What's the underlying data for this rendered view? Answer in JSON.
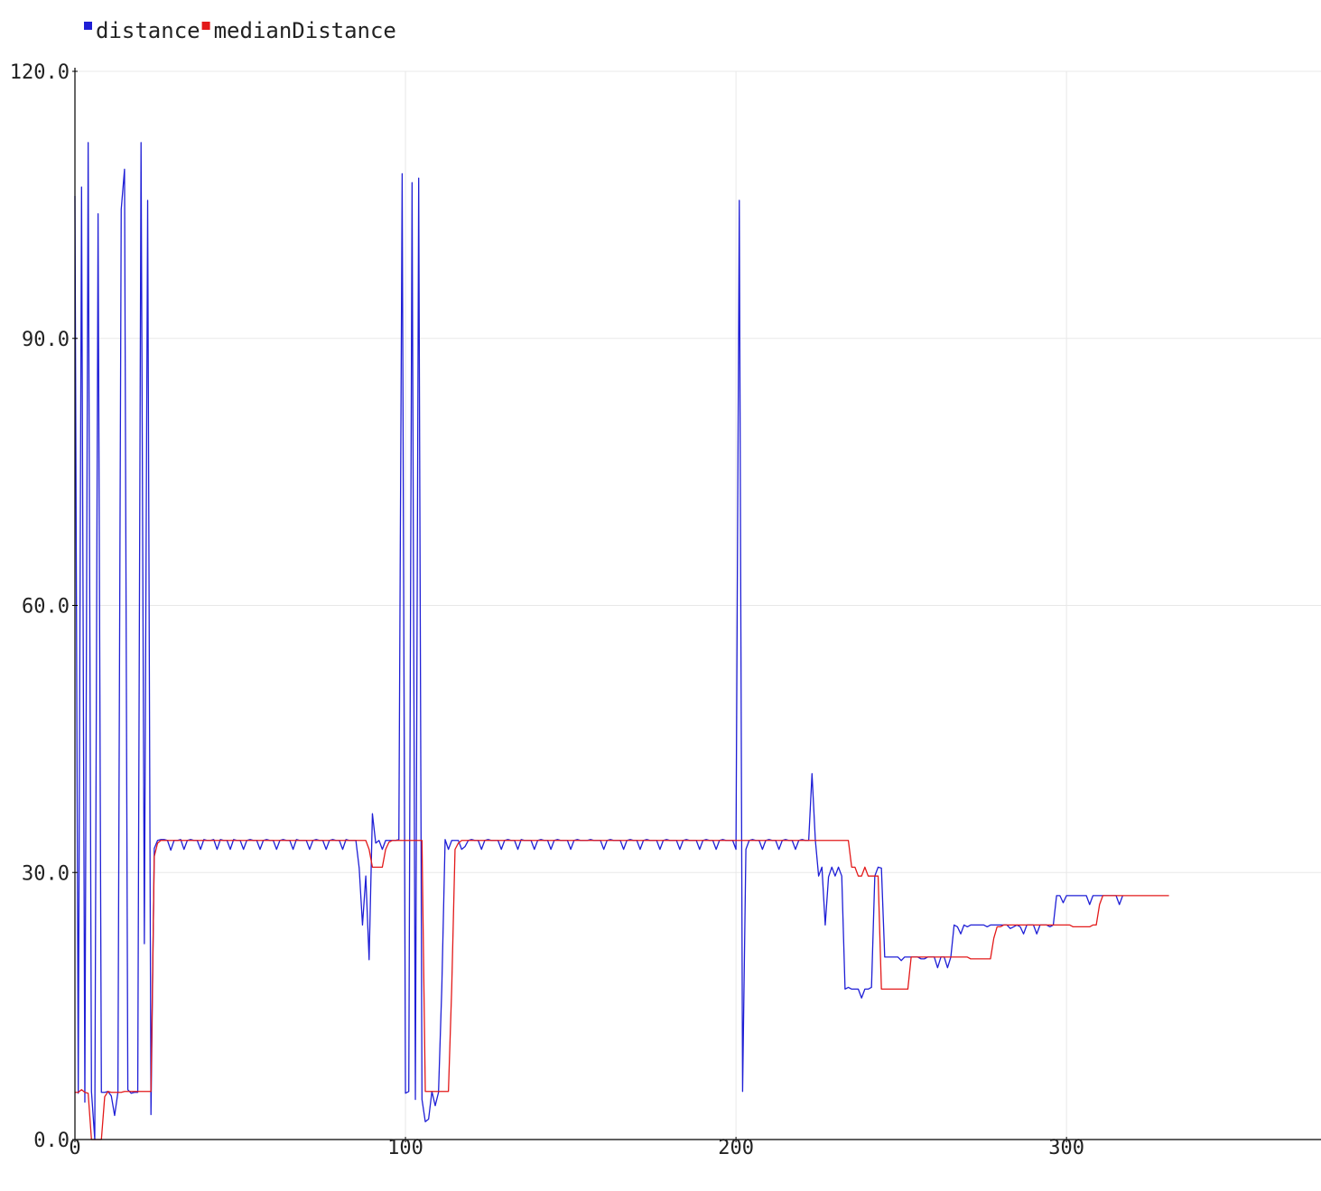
{
  "colors": {
    "distance": "#1f1fd6",
    "medianDistance": "#e31a1a",
    "grid": "#e8e8e8",
    "axis": "#000000",
    "text": "#222222"
  },
  "chart_data": {
    "type": "line",
    "xlim": [
      0,
      377
    ],
    "ylim": [
      0,
      120
    ],
    "grid": true,
    "legend_position": "top-left",
    "x_ticks": [
      0,
      100,
      200,
      300
    ],
    "x_tick_labels": [
      "0",
      "100",
      "200",
      "300"
    ],
    "y_ticks": [
      0,
      30,
      60,
      90,
      120
    ],
    "y_tick_labels": [
      "0.0",
      "30.0",
      "60.0",
      "90.0",
      "120.0"
    ],
    "series": [
      {
        "name": "distance",
        "color": "#1f1fd6",
        "values": [
          106,
          5.2,
          107,
          4.2,
          112,
          5.4,
          0,
          104,
          5.3,
          5.3,
          5.4,
          4.9,
          2.7,
          5.3,
          104.5,
          109,
          5.6,
          5.2,
          5.3,
          5.3,
          112,
          22,
          105.5,
          2.8,
          32.7,
          33.6,
          33.7,
          33.7,
          33.6,
          32.5,
          33.6,
          33.6,
          33.7,
          32.6,
          33.6,
          33.7,
          33.6,
          33.6,
          32.6,
          33.7,
          33.6,
          33.6,
          33.7,
          32.6,
          33.7,
          33.6,
          33.6,
          32.6,
          33.7,
          33.6,
          33.6,
          32.6,
          33.6,
          33.7,
          33.6,
          33.6,
          32.6,
          33.6,
          33.7,
          33.6,
          33.6,
          32.6,
          33.6,
          33.7,
          33.6,
          33.6,
          32.6,
          33.7,
          33.6,
          33.6,
          33.6,
          32.6,
          33.6,
          33.7,
          33.6,
          33.6,
          32.6,
          33.6,
          33.7,
          33.6,
          33.6,
          32.6,
          33.7,
          33.6,
          33.6,
          33.6,
          30.5,
          24.1,
          29.6,
          20.2,
          36.6,
          33.3,
          33.6,
          32.6,
          33.6,
          33.6,
          33.6,
          33.6,
          33.7,
          108.5,
          5.2,
          5.4,
          107.5,
          4.5,
          108,
          4.5,
          2.0,
          2.3,
          5.4,
          3.8,
          5.3,
          17.1,
          33.7,
          32.6,
          33.6,
          33.6,
          33.6,
          32.6,
          32.9,
          33.6,
          33.7,
          33.6,
          33.6,
          32.6,
          33.6,
          33.7,
          33.6,
          33.6,
          33.6,
          32.6,
          33.6,
          33.7,
          33.6,
          33.6,
          32.6,
          33.7,
          33.6,
          33.6,
          33.6,
          32.6,
          33.6,
          33.7,
          33.6,
          33.6,
          32.6,
          33.6,
          33.7,
          33.6,
          33.6,
          33.6,
          32.6,
          33.6,
          33.7,
          33.6,
          33.6,
          33.6,
          33.7,
          33.6,
          33.6,
          33.6,
          32.6,
          33.6,
          33.7,
          33.6,
          33.6,
          33.6,
          32.6,
          33.6,
          33.7,
          33.6,
          33.6,
          32.6,
          33.6,
          33.7,
          33.6,
          33.6,
          33.6,
          32.6,
          33.6,
          33.7,
          33.6,
          33.6,
          33.6,
          32.6,
          33.6,
          33.7,
          33.6,
          33.6,
          33.6,
          32.6,
          33.6,
          33.7,
          33.6,
          33.6,
          32.6,
          33.6,
          33.7,
          33.6,
          33.6,
          33.6,
          32.6,
          105.5,
          5.4,
          32.6,
          33.6,
          33.7,
          33.6,
          33.6,
          32.6,
          33.6,
          33.7,
          33.6,
          33.6,
          32.6,
          33.6,
          33.7,
          33.6,
          33.6,
          32.6,
          33.6,
          33.7,
          33.6,
          33.6,
          41.1,
          33.7,
          29.6,
          30.6,
          24.1,
          29.5,
          30.6,
          29.6,
          30.6,
          29.6,
          16.9,
          17.1,
          16.9,
          16.9,
          16.9,
          15.9,
          16.9,
          16.9,
          17.1,
          29.6,
          30.6,
          30.5,
          20.5,
          20.5,
          20.5,
          20.5,
          20.5,
          20.1,
          20.5,
          20.5,
          20.5,
          20.5,
          20.5,
          20.3,
          20.3,
          20.5,
          20.5,
          20.5,
          19.3,
          20.5,
          20.5,
          19.3,
          20.5,
          24.1,
          23.9,
          23.1,
          24.1,
          23.9,
          24.1,
          24.1,
          24.1,
          24.1,
          24.1,
          23.9,
          24.1,
          24.1,
          24.1,
          24.1,
          24.1,
          24.1,
          23.7,
          23.9,
          24.1,
          23.9,
          23.1,
          24.1,
          24.1,
          24.1,
          23.1,
          24.1,
          24.1,
          24.1,
          23.9,
          24.1,
          27.4,
          27.4,
          26.6,
          27.4,
          27.4,
          27.4,
          27.4,
          27.4,
          27.4,
          27.4,
          26.4,
          27.4,
          27.4,
          27.4,
          27.4,
          27.4,
          27.4,
          27.4,
          27.4,
          26.4,
          27.4
        ]
      },
      {
        "name": "medianDistance",
        "color": "#e31a1a",
        "values": [
          5.3,
          5.3,
          5.6,
          5.3,
          5.2,
          0,
          0,
          0,
          0,
          4.8,
          5.4,
          5.3,
          5.3,
          5.3,
          5.3,
          5.4,
          5.4,
          5.4,
          5.4,
          5.4,
          5.4,
          5.4,
          5.4,
          5.4,
          31.8,
          33.3,
          33.6,
          33.6,
          33.6,
          33.6,
          33.6,
          33.6,
          33.6,
          33.6,
          33.6,
          33.6,
          33.6,
          33.6,
          33.6,
          33.6,
          33.6,
          33.6,
          33.6,
          33.6,
          33.6,
          33.6,
          33.6,
          33.6,
          33.6,
          33.6,
          33.6,
          33.6,
          33.6,
          33.6,
          33.6,
          33.6,
          33.6,
          33.6,
          33.6,
          33.6,
          33.6,
          33.6,
          33.6,
          33.6,
          33.6,
          33.6,
          33.6,
          33.6,
          33.6,
          33.6,
          33.6,
          33.6,
          33.6,
          33.6,
          33.6,
          33.6,
          33.6,
          33.6,
          33.6,
          33.6,
          33.6,
          33.6,
          33.6,
          33.6,
          33.6,
          33.6,
          33.6,
          33.6,
          33.6,
          32.6,
          30.6,
          30.6,
          30.6,
          30.6,
          32.6,
          33.4,
          33.6,
          33.6,
          33.6,
          33.6,
          33.6,
          33.6,
          33.6,
          33.6,
          33.6,
          33.6,
          5.4,
          5.4,
          5.4,
          5.4,
          5.4,
          5.4,
          5.4,
          5.4,
          17.1,
          32.6,
          33.3,
          33.6,
          33.6,
          33.6,
          33.6,
          33.6,
          33.6,
          33.6,
          33.6,
          33.6,
          33.6,
          33.6,
          33.6,
          33.6,
          33.6,
          33.6,
          33.6,
          33.6,
          33.6,
          33.6,
          33.6,
          33.6,
          33.6,
          33.6,
          33.6,
          33.6,
          33.6,
          33.6,
          33.6,
          33.6,
          33.6,
          33.6,
          33.6,
          33.6,
          33.6,
          33.6,
          33.6,
          33.6,
          33.6,
          33.6,
          33.6,
          33.6,
          33.6,
          33.6,
          33.6,
          33.6,
          33.6,
          33.6,
          33.6,
          33.6,
          33.6,
          33.6,
          33.6,
          33.6,
          33.6,
          33.6,
          33.6,
          33.6,
          33.6,
          33.6,
          33.6,
          33.6,
          33.6,
          33.6,
          33.6,
          33.6,
          33.6,
          33.6,
          33.6,
          33.6,
          33.6,
          33.6,
          33.6,
          33.6,
          33.6,
          33.6,
          33.6,
          33.6,
          33.6,
          33.6,
          33.6,
          33.6,
          33.6,
          33.6,
          33.6,
          33.6,
          33.6,
          33.6,
          33.6,
          33.6,
          33.6,
          33.6,
          33.6,
          33.6,
          33.6,
          33.6,
          33.6,
          33.6,
          33.6,
          33.6,
          33.6,
          33.6,
          33.6,
          33.6,
          33.6,
          33.6,
          33.6,
          33.6,
          33.6,
          33.6,
          33.6,
          33.6,
          33.6,
          33.6,
          33.6,
          33.6,
          33.6,
          33.6,
          33.6,
          30.6,
          30.6,
          29.6,
          29.6,
          30.6,
          29.6,
          29.6,
          29.6,
          29.6,
          16.9,
          16.9,
          16.9,
          16.9,
          16.9,
          16.9,
          16.9,
          16.9,
          16.9,
          20.5,
          20.5,
          20.5,
          20.5,
          20.5,
          20.5,
          20.5,
          20.5,
          20.5,
          20.5,
          20.5,
          20.5,
          20.5,
          20.5,
          20.5,
          20.5,
          20.5,
          20.5,
          20.3,
          20.3,
          20.3,
          20.3,
          20.3,
          20.3,
          20.3,
          22.6,
          23.9,
          23.9,
          24.1,
          24.1,
          24.1,
          24.1,
          24.1,
          24.1,
          24.1,
          24.1,
          24.1,
          24.1,
          24.1,
          24.1,
          24.1,
          24.1,
          24.1,
          24.1,
          24.1,
          24.1,
          24.1,
          24.1,
          24.1,
          23.9,
          23.9,
          23.9,
          23.9,
          23.9,
          23.9,
          24.1,
          24.1,
          26.4,
          27.4,
          27.4,
          27.4,
          27.4,
          27.4,
          27.4,
          27.4,
          27.4,
          27.4,
          27.4,
          27.4,
          27.4,
          27.4,
          27.4,
          27.4,
          27.4,
          27.4,
          27.4,
          27.4,
          27.4,
          27.4
        ]
      }
    ]
  }
}
